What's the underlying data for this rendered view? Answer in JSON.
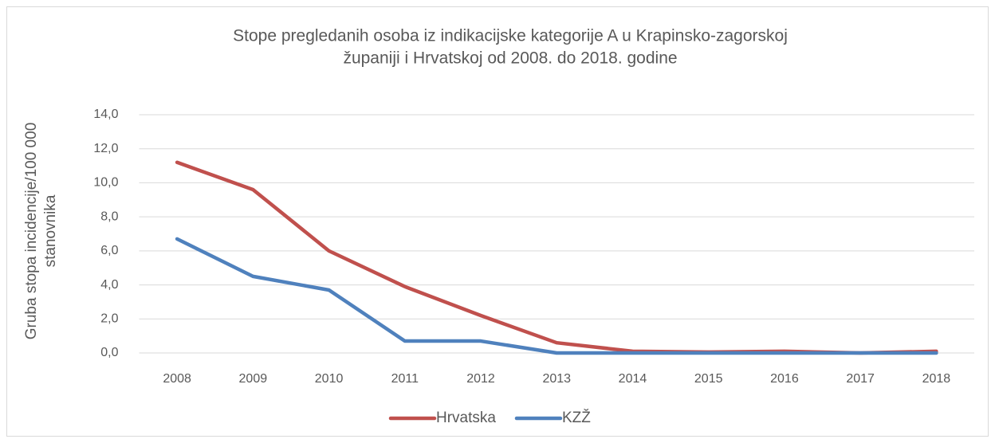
{
  "chart_data": {
    "type": "line",
    "title": [
      "Stope pregledanih osoba iz indikacijske kategorije A u Krapinsko-zagorskoj",
      "županiji i Hrvatskoj od 2008. do 2018. godine"
    ],
    "y_label": [
      "Gruba stopa incidencije/100 000",
      "stanovnika"
    ],
    "categories": [
      "2008",
      "2009",
      "2010",
      "2011",
      "2012",
      "2013",
      "2014",
      "2015",
      "2016",
      "2017",
      "2018"
    ],
    "series": [
      {
        "name": "Hrvatska",
        "color": "#c0504d",
        "values": [
          11.2,
          9.6,
          6.0,
          3.9,
          2.2,
          0.6,
          0.1,
          0.05,
          0.1,
          0.0,
          0.1
        ]
      },
      {
        "name": "KZŽ",
        "color": "#4f81bd",
        "values": [
          6.7,
          4.5,
          3.7,
          0.7,
          0.7,
          0.0,
          0.0,
          0.0,
          0.0,
          0.0,
          0.0
        ]
      }
    ],
    "ylim": [
      0,
      14
    ],
    "yticks": [
      {
        "value": 0,
        "label": "0,0"
      },
      {
        "value": 2,
        "label": "2,0"
      },
      {
        "value": 4,
        "label": "4,0"
      },
      {
        "value": 6,
        "label": "6,0"
      },
      {
        "value": 8,
        "label": "8,0"
      },
      {
        "value": 10,
        "label": "10,0"
      },
      {
        "value": 12,
        "label": "12,0"
      },
      {
        "value": 14,
        "label": "14,0"
      }
    ],
    "grid": true,
    "legend": "bottom"
  }
}
